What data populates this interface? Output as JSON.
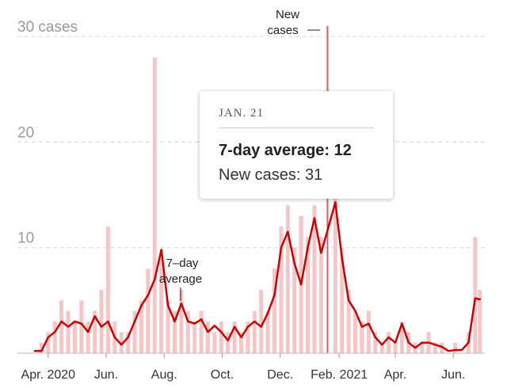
{
  "tooltip": {
    "date": "JAN. 21",
    "avg_label": "7-day average:",
    "avg_value": "12",
    "new_label": "New cases:",
    "new_value": "31"
  },
  "annotations": {
    "avg_line1": "7–day",
    "avg_line2": "average",
    "new_line1": "New",
    "new_line2": "cases"
  },
  "colors": {
    "avg_line": "#cc0000",
    "daily_bars": "#f6c6c6",
    "gridline": "#d8d8d8",
    "highlight_bar": "#e05a5a"
  },
  "chart_data": {
    "type": "bar",
    "title": "",
    "xlabel": "",
    "ylabel": "",
    "ylim": [
      0,
      30
    ],
    "x_range": [
      "2020-03-18",
      "2021-06-30"
    ],
    "y_ticks": [
      {
        "value": 10,
        "label": "10"
      },
      {
        "value": 20,
        "label": "20"
      },
      {
        "value": 30,
        "label": "30 cases"
      }
    ],
    "x_ticks": [
      {
        "date": "2020-04-01",
        "label": "Apr. 2020"
      },
      {
        "date": "2020-06-01",
        "label": "Jun."
      },
      {
        "date": "2020-08-01",
        "label": "Aug."
      },
      {
        "date": "2020-10-01",
        "label": "Oct."
      },
      {
        "date": "2020-12-01",
        "label": "Dec."
      },
      {
        "date": "2021-02-01",
        "label": "Feb. 2021"
      },
      {
        "date": "2021-04-01",
        "label": "Apr."
      },
      {
        "date": "2021-06-01",
        "label": "Jun."
      }
    ],
    "highlight": {
      "date": "2021-01-21",
      "new_cases": 31,
      "seven_day_average": 12
    },
    "series": [
      {
        "name": "New cases",
        "kind": "bars",
        "points": [
          {
            "date": "2020-03-18",
            "value": 0
          },
          {
            "date": "2020-03-25",
            "value": 1
          },
          {
            "date": "2020-04-01",
            "value": 2
          },
          {
            "date": "2020-04-08",
            "value": 3
          },
          {
            "date": "2020-04-15",
            "value": 5
          },
          {
            "date": "2020-04-22",
            "value": 4
          },
          {
            "date": "2020-04-29",
            "value": 3
          },
          {
            "date": "2020-05-06",
            "value": 5
          },
          {
            "date": "2020-05-13",
            "value": 3
          },
          {
            "date": "2020-05-20",
            "value": 4
          },
          {
            "date": "2020-05-27",
            "value": 6
          },
          {
            "date": "2020-06-03",
            "value": 12
          },
          {
            "date": "2020-06-10",
            "value": 3
          },
          {
            "date": "2020-06-17",
            "value": 2
          },
          {
            "date": "2020-06-24",
            "value": 2
          },
          {
            "date": "2020-07-01",
            "value": 4
          },
          {
            "date": "2020-07-08",
            "value": 5
          },
          {
            "date": "2020-07-15",
            "value": 8
          },
          {
            "date": "2020-07-22",
            "value": 28
          },
          {
            "date": "2020-07-29",
            "value": 9
          },
          {
            "date": "2020-08-05",
            "value": 5
          },
          {
            "date": "2020-08-12",
            "value": 4
          },
          {
            "date": "2020-08-19",
            "value": 6
          },
          {
            "date": "2020-08-26",
            "value": 4
          },
          {
            "date": "2020-09-02",
            "value": 3
          },
          {
            "date": "2020-09-09",
            "value": 4
          },
          {
            "date": "2020-09-16",
            "value": 3
          },
          {
            "date": "2020-09-23",
            "value": 2
          },
          {
            "date": "2020-09-30",
            "value": 3
          },
          {
            "date": "2020-10-07",
            "value": 2
          },
          {
            "date": "2020-10-14",
            "value": 3
          },
          {
            "date": "2020-10-21",
            "value": 2
          },
          {
            "date": "2020-10-28",
            "value": 3
          },
          {
            "date": "2020-11-04",
            "value": 4
          },
          {
            "date": "2020-11-11",
            "value": 6
          },
          {
            "date": "2020-11-18",
            "value": 4
          },
          {
            "date": "2020-11-25",
            "value": 8
          },
          {
            "date": "2020-12-02",
            "value": 12
          },
          {
            "date": "2020-12-09",
            "value": 14
          },
          {
            "date": "2020-12-16",
            "value": 10
          },
          {
            "date": "2020-12-23",
            "value": 13
          },
          {
            "date": "2020-12-30",
            "value": 11
          },
          {
            "date": "2021-01-06",
            "value": 14
          },
          {
            "date": "2021-01-13",
            "value": 11
          },
          {
            "date": "2021-01-21",
            "value": 31
          },
          {
            "date": "2021-01-28",
            "value": 16
          },
          {
            "date": "2021-02-04",
            "value": 10
          },
          {
            "date": "2021-02-11",
            "value": 6
          },
          {
            "date": "2021-02-18",
            "value": 4
          },
          {
            "date": "2021-02-25",
            "value": 3
          },
          {
            "date": "2021-03-04",
            "value": 4
          },
          {
            "date": "2021-03-11",
            "value": 2
          },
          {
            "date": "2021-03-18",
            "value": 1
          },
          {
            "date": "2021-03-25",
            "value": 2
          },
          {
            "date": "2021-04-01",
            "value": 1
          },
          {
            "date": "2021-04-08",
            "value": 3
          },
          {
            "date": "2021-04-15",
            "value": 2
          },
          {
            "date": "2021-04-22",
            "value": 1
          },
          {
            "date": "2021-04-29",
            "value": 1
          },
          {
            "date": "2021-05-06",
            "value": 2
          },
          {
            "date": "2021-05-13",
            "value": 1
          },
          {
            "date": "2021-05-20",
            "value": 1
          },
          {
            "date": "2021-05-27",
            "value": 0
          },
          {
            "date": "2021-06-03",
            "value": 1
          },
          {
            "date": "2021-06-10",
            "value": 0
          },
          {
            "date": "2021-06-17",
            "value": 2
          },
          {
            "date": "2021-06-24",
            "value": 11
          },
          {
            "date": "2021-06-29",
            "value": 6
          }
        ]
      },
      {
        "name": "7-day average",
        "kind": "line",
        "points": [
          {
            "date": "2020-03-18",
            "value": 0.2
          },
          {
            "date": "2020-03-25",
            "value": 0.2
          },
          {
            "date": "2020-04-01",
            "value": 1.5
          },
          {
            "date": "2020-04-08",
            "value": 2.0
          },
          {
            "date": "2020-04-15",
            "value": 3.0
          },
          {
            "date": "2020-04-22",
            "value": 2.5
          },
          {
            "date": "2020-04-29",
            "value": 3.0
          },
          {
            "date": "2020-05-06",
            "value": 2.8
          },
          {
            "date": "2020-05-13",
            "value": 2.0
          },
          {
            "date": "2020-05-20",
            "value": 3.5
          },
          {
            "date": "2020-05-27",
            "value": 2.5
          },
          {
            "date": "2020-06-03",
            "value": 3.0
          },
          {
            "date": "2020-06-10",
            "value": 1.5
          },
          {
            "date": "2020-06-17",
            "value": 0.8
          },
          {
            "date": "2020-06-24",
            "value": 1.5
          },
          {
            "date": "2020-07-01",
            "value": 3.0
          },
          {
            "date": "2020-07-08",
            "value": 4.5
          },
          {
            "date": "2020-07-15",
            "value": 5.5
          },
          {
            "date": "2020-07-22",
            "value": 7.0
          },
          {
            "date": "2020-07-29",
            "value": 9.8
          },
          {
            "date": "2020-08-05",
            "value": 4.5
          },
          {
            "date": "2020-08-12",
            "value": 3.0
          },
          {
            "date": "2020-08-19",
            "value": 4.7
          },
          {
            "date": "2020-08-26",
            "value": 3.0
          },
          {
            "date": "2020-09-02",
            "value": 2.8
          },
          {
            "date": "2020-09-09",
            "value": 3.2
          },
          {
            "date": "2020-09-16",
            "value": 2.0
          },
          {
            "date": "2020-09-23",
            "value": 2.6
          },
          {
            "date": "2020-09-30",
            "value": 2.0
          },
          {
            "date": "2020-10-07",
            "value": 1.2
          },
          {
            "date": "2020-10-14",
            "value": 2.5
          },
          {
            "date": "2020-10-21",
            "value": 1.5
          },
          {
            "date": "2020-10-28",
            "value": 2.5
          },
          {
            "date": "2020-11-04",
            "value": 3.0
          },
          {
            "date": "2020-11-11",
            "value": 2.5
          },
          {
            "date": "2020-11-18",
            "value": 3.8
          },
          {
            "date": "2020-11-25",
            "value": 5.5
          },
          {
            "date": "2020-12-02",
            "value": 10.0
          },
          {
            "date": "2020-12-09",
            "value": 11.5
          },
          {
            "date": "2020-12-16",
            "value": 8.5
          },
          {
            "date": "2020-12-23",
            "value": 6.5
          },
          {
            "date": "2020-12-30",
            "value": 10.0
          },
          {
            "date": "2021-01-06",
            "value": 12.8
          },
          {
            "date": "2021-01-13",
            "value": 9.5
          },
          {
            "date": "2021-01-21",
            "value": 12.0
          },
          {
            "date": "2021-01-28",
            "value": 14.3
          },
          {
            "date": "2021-02-04",
            "value": 9.0
          },
          {
            "date": "2021-02-11",
            "value": 5.0
          },
          {
            "date": "2021-02-18",
            "value": 4.0
          },
          {
            "date": "2021-02-25",
            "value": 2.5
          },
          {
            "date": "2021-03-04",
            "value": 2.8
          },
          {
            "date": "2021-03-11",
            "value": 1.5
          },
          {
            "date": "2021-03-18",
            "value": 0.8
          },
          {
            "date": "2021-03-25",
            "value": 1.5
          },
          {
            "date": "2021-04-01",
            "value": 1.0
          },
          {
            "date": "2021-04-08",
            "value": 2.8
          },
          {
            "date": "2021-04-15",
            "value": 1.0
          },
          {
            "date": "2021-04-22",
            "value": 0.5
          },
          {
            "date": "2021-04-29",
            "value": 1.0
          },
          {
            "date": "2021-05-06",
            "value": 1.0
          },
          {
            "date": "2021-05-13",
            "value": 0.8
          },
          {
            "date": "2021-05-20",
            "value": 0.6
          },
          {
            "date": "2021-05-27",
            "value": 0.2
          },
          {
            "date": "2021-06-03",
            "value": 0.3
          },
          {
            "date": "2021-06-10",
            "value": 0.3
          },
          {
            "date": "2021-06-17",
            "value": 1.0
          },
          {
            "date": "2021-06-24",
            "value": 5.2
          },
          {
            "date": "2021-06-29",
            "value": 5.1
          }
        ]
      }
    ]
  }
}
